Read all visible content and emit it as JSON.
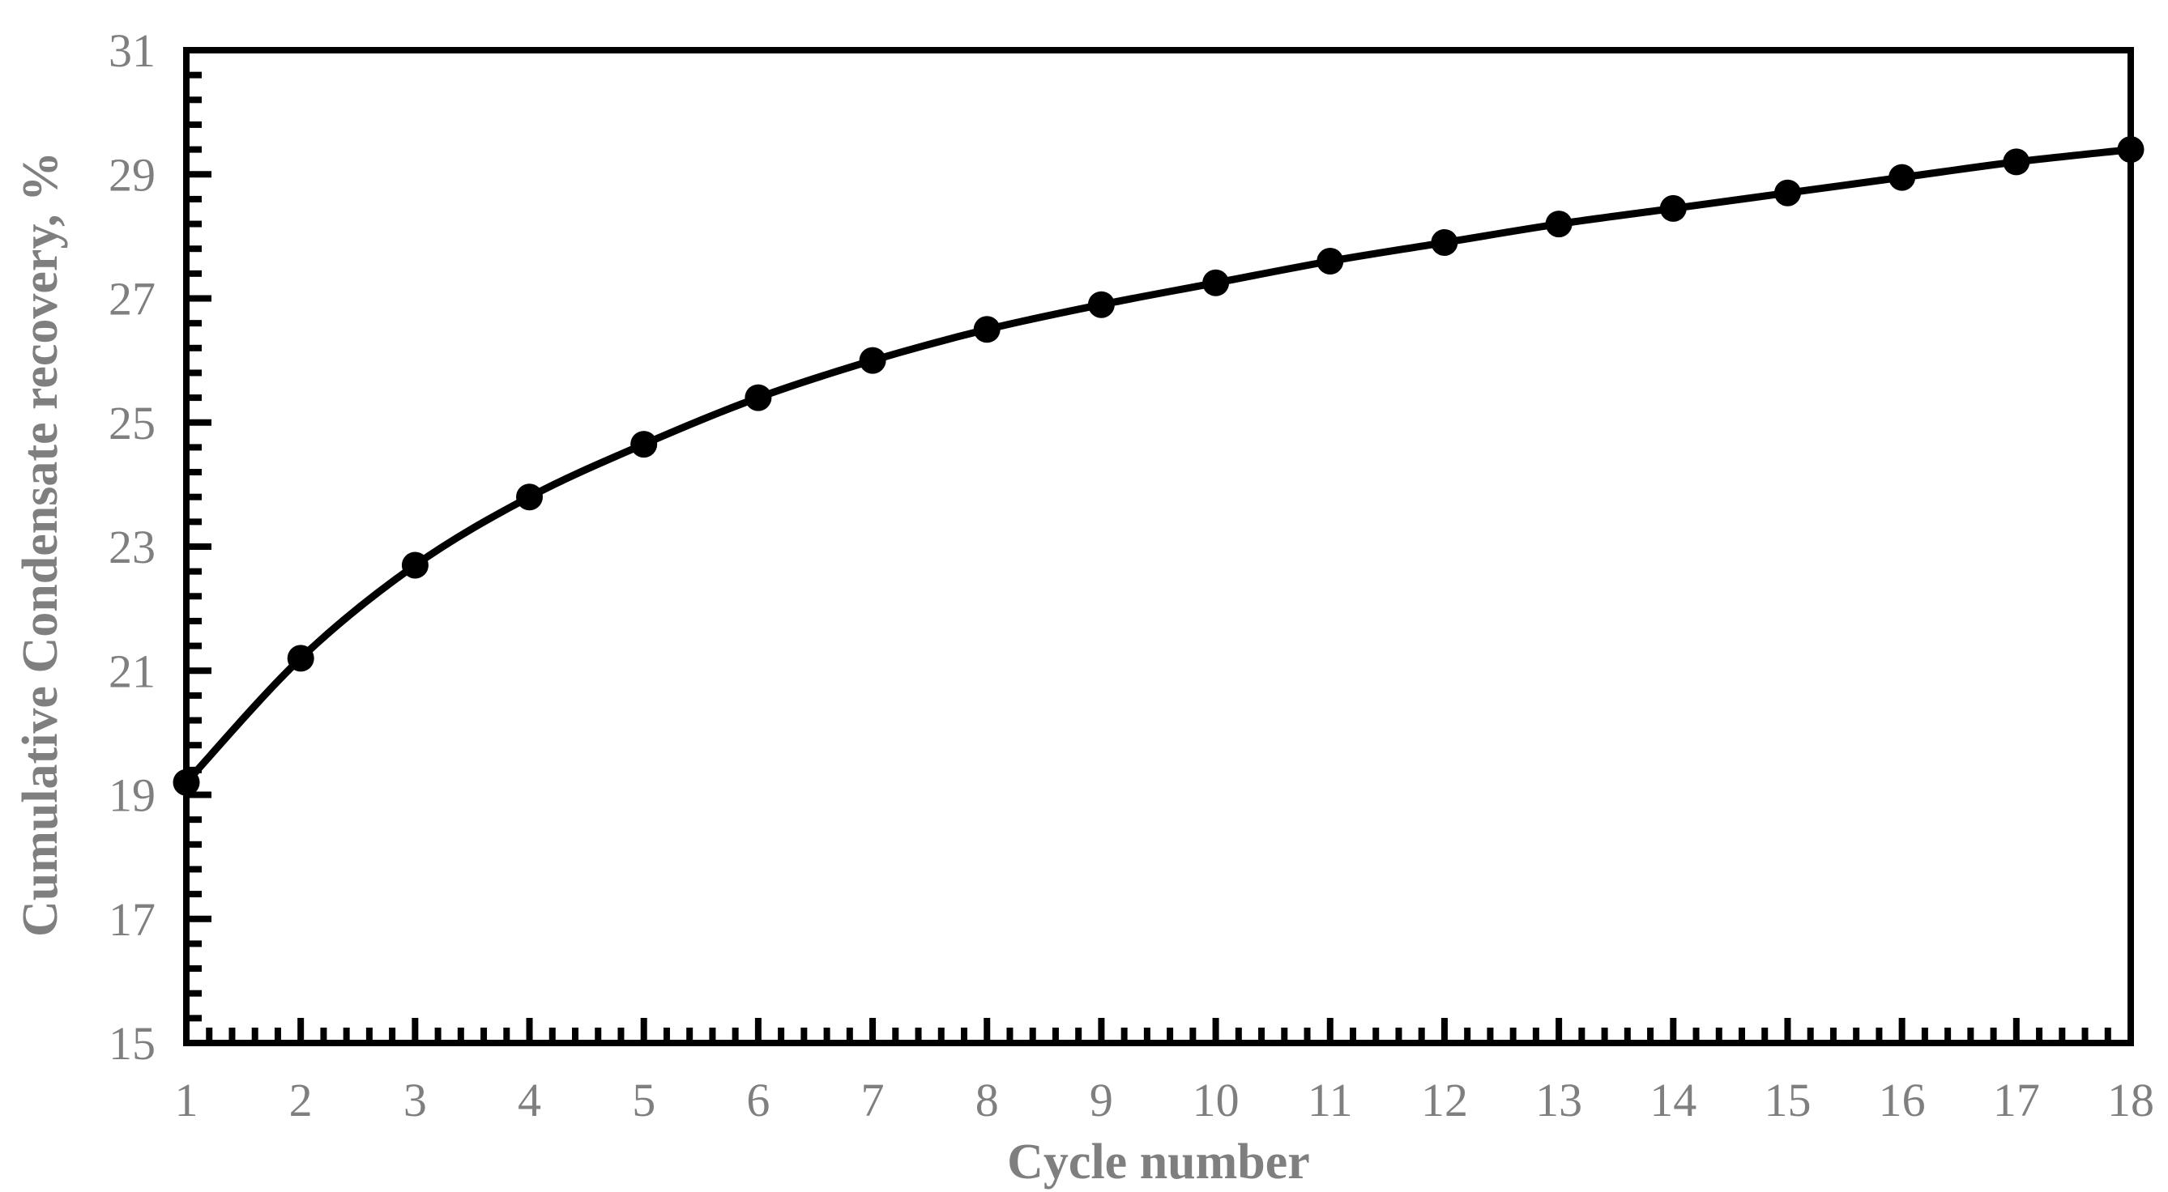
{
  "chart_data": {
    "type": "line",
    "title": "",
    "xlabel": "Cycle number",
    "ylabel": "Cumulative Condensate recovery, %",
    "x": [
      1,
      2,
      3,
      4,
      5,
      6,
      7,
      8,
      9,
      10,
      11,
      12,
      13,
      14,
      15,
      16,
      17,
      18
    ],
    "series": [
      {
        "name": "Cumulative condensate recovery",
        "values": [
          19.2,
          21.2,
          22.7,
          23.8,
          24.65,
          25.4,
          26.0,
          26.5,
          26.9,
          27.25,
          27.6,
          27.9,
          28.2,
          28.45,
          28.7,
          28.95,
          29.2,
          29.4
        ]
      }
    ],
    "xlim": [
      1,
      18
    ],
    "ylim": [
      15,
      31
    ],
    "x_tick_values": [
      1,
      2,
      3,
      4,
      5,
      6,
      7,
      8,
      9,
      10,
      11,
      12,
      13,
      14,
      15,
      16,
      17,
      18
    ],
    "x_tick_labels": [
      "1",
      "2",
      "3",
      "4",
      "5",
      "6",
      "7",
      "8",
      "9",
      "10",
      "11",
      "12",
      "13",
      "14",
      "15",
      "16",
      "17",
      "18"
    ],
    "y_tick_values": [
      15,
      17,
      19,
      21,
      23,
      25,
      27,
      29,
      31
    ],
    "y_tick_labels": [
      "15",
      "17",
      "19",
      "21",
      "23",
      "25",
      "27",
      "29",
      "31"
    ],
    "x_minor_step": 0.2,
    "y_minor_step": 0.4,
    "grid": false,
    "legend_position": "none",
    "line_color": "#000000",
    "marker": "filled-circle",
    "marker_color": "#000000",
    "axis_line_color": "#000000",
    "axis_text_color": "#7f7f7f",
    "background_color": "#ffffff",
    "ticks_direction": "inside"
  }
}
